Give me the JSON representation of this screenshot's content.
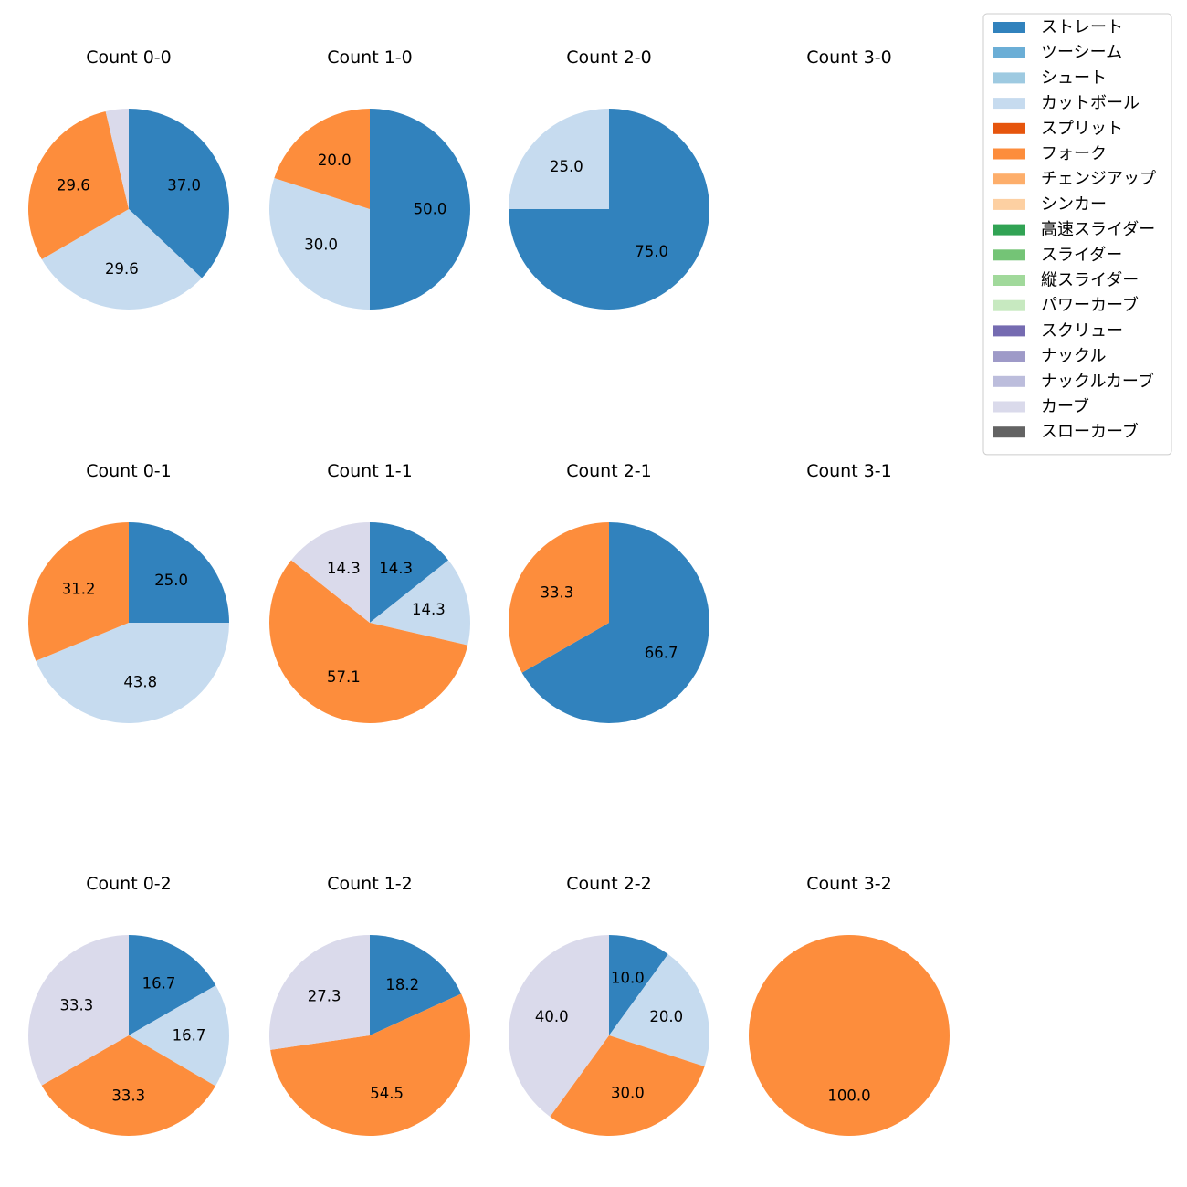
{
  "chart_data": {
    "type": "pie",
    "colors": {
      "ストレート": "#3182bd",
      "ツーシーム": "#6baed6",
      "シュート": "#9ecae1",
      "カットボール": "#c6dbef",
      "スプリット": "#e6550d",
      "フォーク": "#fd8d3c",
      "チェンジアップ": "#fdae6b",
      "シンカー": "#fdd0a2",
      "高速スライダー": "#31a354",
      "スライダー": "#74c476",
      "縦スライダー": "#a1d99b",
      "パワーカーブ": "#c7e9c0",
      "スクリュー": "#756bb1",
      "ナックル": "#9e9ac8",
      "ナックルカーブ": "#bcbddc",
      "カーブ": "#dadaeb",
      "スローカーブ": "#636363"
    },
    "legend": {
      "placement": "top-right",
      "entries": [
        "ストレート",
        "ツーシーム",
        "シュート",
        "カットボール",
        "スプリット",
        "フォーク",
        "チェンジアップ",
        "シンカー",
        "高速スライダー",
        "スライダー",
        "縦スライダー",
        "パワーカーブ",
        "スクリュー",
        "ナックル",
        "ナックルカーブ",
        "カーブ",
        "スローカーブ"
      ]
    },
    "pies": [
      {
        "title": "Count 0-0",
        "slices": [
          {
            "name": "ストレート",
            "value": 37.0
          },
          {
            "name": "カットボール",
            "value": 29.6
          },
          {
            "name": "フォーク",
            "value": 29.6
          },
          {
            "name": "カーブ",
            "value": 3.7,
            "hide_label": true
          }
        ]
      },
      {
        "title": "Count 1-0",
        "slices": [
          {
            "name": "ストレート",
            "value": 50.0
          },
          {
            "name": "カットボール",
            "value": 30.0
          },
          {
            "name": "フォーク",
            "value": 20.0
          }
        ]
      },
      {
        "title": "Count 2-0",
        "slices": [
          {
            "name": "ストレート",
            "value": 75.0
          },
          {
            "name": "カットボール",
            "value": 25.0
          }
        ]
      },
      {
        "title": "Count 3-0",
        "slices": []
      },
      {
        "title": "Count 0-1",
        "slices": [
          {
            "name": "ストレート",
            "value": 25.0
          },
          {
            "name": "カットボール",
            "value": 43.8
          },
          {
            "name": "フォーク",
            "value": 31.2
          }
        ]
      },
      {
        "title": "Count 1-1",
        "slices": [
          {
            "name": "ストレート",
            "value": 14.3
          },
          {
            "name": "カットボール",
            "value": 14.3
          },
          {
            "name": "フォーク",
            "value": 57.1
          },
          {
            "name": "カーブ",
            "value": 14.3
          }
        ]
      },
      {
        "title": "Count 2-1",
        "slices": [
          {
            "name": "ストレート",
            "value": 66.7
          },
          {
            "name": "フォーク",
            "value": 33.3
          }
        ]
      },
      {
        "title": "Count 3-1",
        "slices": []
      },
      {
        "title": "Count 0-2",
        "slices": [
          {
            "name": "ストレート",
            "value": 16.7
          },
          {
            "name": "カットボール",
            "value": 16.7
          },
          {
            "name": "フォーク",
            "value": 33.3
          },
          {
            "name": "カーブ",
            "value": 33.3
          }
        ]
      },
      {
        "title": "Count 1-2",
        "slices": [
          {
            "name": "ストレート",
            "value": 18.2
          },
          {
            "name": "フォーク",
            "value": 54.5
          },
          {
            "name": "カーブ",
            "value": 27.3
          }
        ]
      },
      {
        "title": "Count 2-2",
        "slices": [
          {
            "name": "ストレート",
            "value": 10.0
          },
          {
            "name": "カットボール",
            "value": 20.0
          },
          {
            "name": "フォーク",
            "value": 30.0
          },
          {
            "name": "カーブ",
            "value": 40.0
          }
        ]
      },
      {
        "title": "Count 3-2",
        "slices": [
          {
            "name": "フォーク",
            "value": 100.0
          }
        ]
      }
    ]
  }
}
